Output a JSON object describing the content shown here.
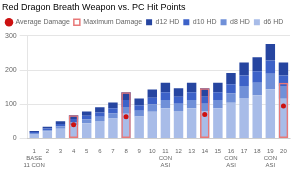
{
  "chart_data": {
    "type": "bar",
    "title": "Red Dragon Breath Weapon vs. PC Hit Points",
    "categories": [
      "1\nBASE\n11 CON",
      "2",
      "3",
      "4",
      "5",
      "6",
      "7",
      "8",
      "9",
      "10",
      "11\nCON\nASI",
      "12",
      "13",
      "14",
      "15",
      "16\nCON\nASI",
      "17",
      "18",
      "19\nCON\nASI",
      "20"
    ],
    "series": [
      {
        "name": "d6 HD",
        "color": "#a8bce8",
        "values": [
          13,
          20,
          28,
          38,
          44,
          51,
          58,
          72,
          64,
          78,
          88,
          80,
          88,
          80,
          88,
          104,
          118,
          126,
          144,
          116
        ]
      },
      {
        "name": "d8 HD",
        "color": "#7090d8",
        "values": [
          3,
          4,
          7,
          9,
          11,
          12,
          15,
          20,
          17,
          21,
          24,
          21,
          24,
          21,
          24,
          27,
          35,
          37,
          45,
          37
        ]
      },
      {
        "name": "d10 HD",
        "color": "#3d62c8",
        "values": [
          3,
          5,
          7,
          10,
          11,
          13,
          15,
          20,
          16,
          20,
          23,
          21,
          23,
          21,
          23,
          27,
          31,
          33,
          39,
          31
        ]
      },
      {
        "name": "d12 HD",
        "color": "#2645a0",
        "values": [
          3,
          5,
          8,
          11,
          13,
          15,
          17,
          23,
          20,
          24,
          28,
          25,
          28,
          25,
          28,
          33,
          38,
          41,
          48,
          38
        ]
      },
      {
        "name": "Maximum Damage",
        "type": "outline",
        "color": "#e87878",
        "values": [
          null,
          null,
          null,
          68,
          null,
          null,
          null,
          135,
          null,
          null,
          null,
          null,
          null,
          147,
          null,
          null,
          null,
          null,
          null,
          163
        ]
      },
      {
        "name": "Average Damage",
        "type": "scatter",
        "marker": "circle",
        "color": "#cc1111",
        "values": [
          null,
          null,
          null,
          40,
          null,
          null,
          null,
          63,
          null,
          null,
          null,
          null,
          null,
          70,
          null,
          null,
          null,
          null,
          null,
          95
        ]
      }
    ],
    "stacked": true,
    "ylim": [
      0,
      300
    ],
    "yticks": [
      0,
      100,
      200,
      300
    ],
    "grid": true,
    "legend": "upper left"
  }
}
